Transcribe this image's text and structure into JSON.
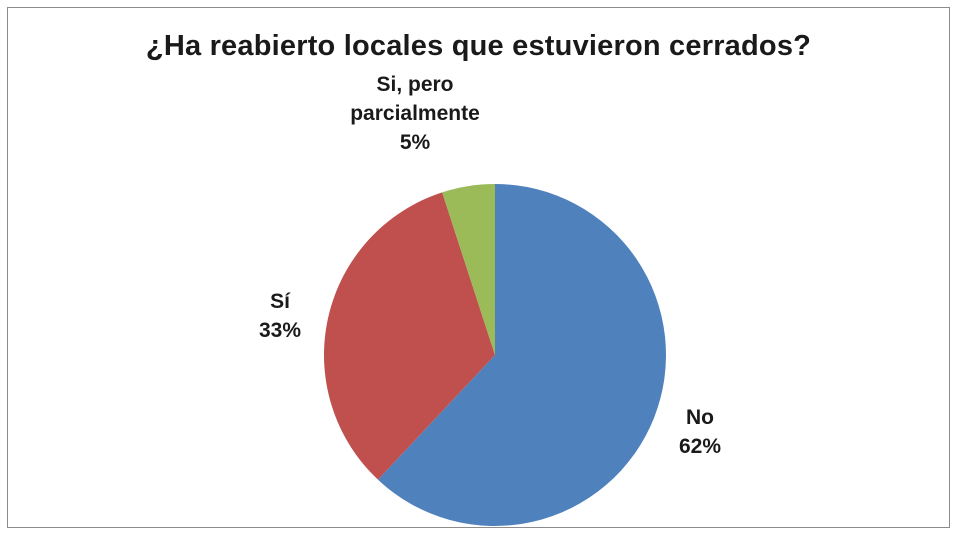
{
  "chart_data": {
    "type": "pie",
    "title": "¿Ha reabierto locales que estuvieron cerrados?",
    "categories": [
      "No",
      "Sí",
      "Si, pero parcialmente"
    ],
    "values": [
      62,
      33,
      5
    ],
    "value_labels": [
      "62%",
      "33%",
      "5%"
    ],
    "label_lines": [
      [
        "No"
      ],
      [
        "Sí"
      ],
      [
        "Si, pero",
        "parcialmente"
      ]
    ],
    "colors": [
      "#4F81BD",
      "#C0504D",
      "#9BBB59"
    ],
    "legend": "none"
  }
}
